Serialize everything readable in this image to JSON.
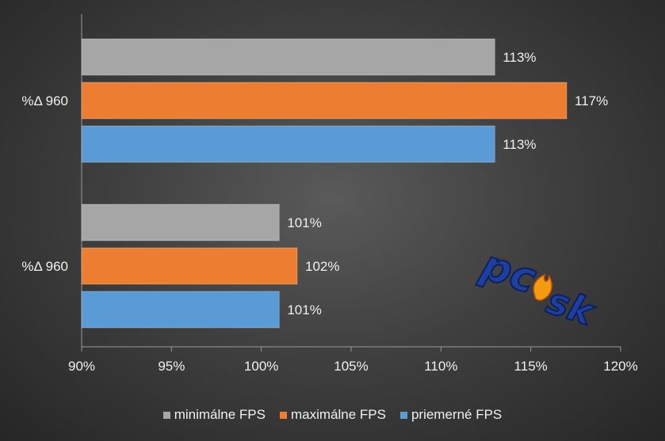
{
  "chart_data": {
    "type": "bar",
    "orientation": "horizontal",
    "categories": [
      "%Δ 960",
      "%Δ 960"
    ],
    "series": [
      {
        "name": "minimálne FPS",
        "values": [
          113,
          101
        ],
        "labels": [
          "113%",
          "101%"
        ],
        "color": "#a6a6a6"
      },
      {
        "name": "maximálne FPS",
        "values": [
          117,
          102
        ],
        "labels": [
          "117%",
          "102%"
        ],
        "color": "#ed7d31"
      },
      {
        "name": "priemerné FPS",
        "values": [
          113,
          101
        ],
        "labels": [
          "113%",
          "101%"
        ],
        "color": "#5b9bd5"
      }
    ],
    "xlim": [
      90,
      120
    ],
    "xticks": [
      "90%",
      "95%",
      "100%",
      "105%",
      "110%",
      "115%",
      "120%"
    ],
    "title": "",
    "xlabel": "",
    "ylabel": "",
    "grid": false,
    "legend_position": "bottom"
  },
  "logo": {
    "text": "pcsk"
  }
}
